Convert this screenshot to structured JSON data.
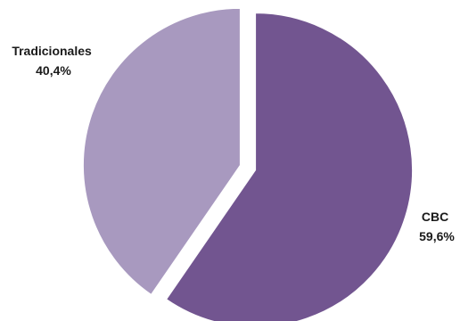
{
  "chart_data": {
    "type": "pie",
    "title": "",
    "legend": "none",
    "slices": [
      {
        "label": "CBC",
        "value": 59.6,
        "display": "59,6%",
        "color": "#725590"
      },
      {
        "label": "Tradicionales",
        "value": 40.4,
        "display": "40,4%",
        "color": "#a899bf"
      }
    ]
  }
}
